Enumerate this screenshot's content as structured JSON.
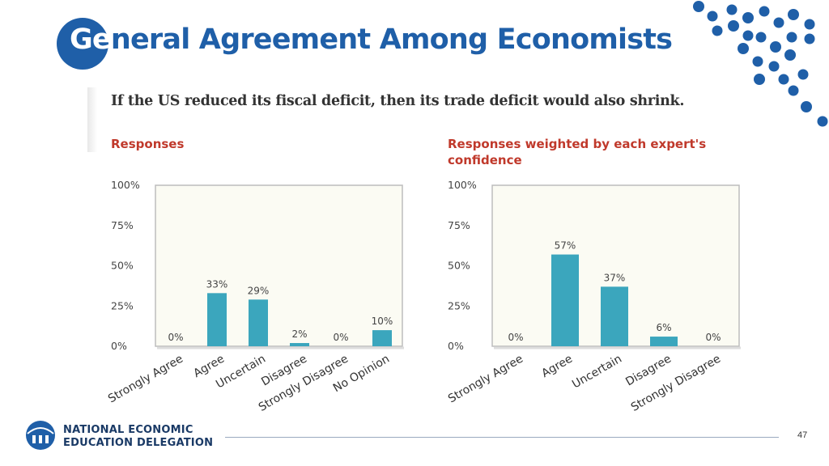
{
  "slide": {
    "title_part1": "Ge",
    "title_part2": "neral Agreement Among Economists",
    "question": "If the US reduced its fiscal deficit, then its trade deficit would also shrink.",
    "page_number": "47"
  },
  "footer": {
    "org_line1": "NATIONAL ECONOMIC",
    "org_line2": "EDUCATION DELEGATION"
  },
  "colors": {
    "bar": "#3ba6bd",
    "title_blue": "#1f5fa8",
    "chart_title_red": "#c0392b",
    "plot_frame": "#bdbdbd",
    "plot_bg": "#fbfbf3"
  },
  "chart_data": [
    {
      "type": "bar",
      "title": "Responses",
      "categories": [
        "Strongly Agree",
        "Agree",
        "Uncertain",
        "Disagree",
        "Strongly Disagree",
        "No Opinion"
      ],
      "values": [
        0,
        33,
        29,
        2,
        0,
        10
      ],
      "value_labels": [
        "0%",
        "33%",
        "29%",
        "2%",
        "0%",
        "10%"
      ],
      "yticks": [
        "0%",
        "25%",
        "50%",
        "75%",
        "100%"
      ],
      "ylim": [
        0,
        100
      ],
      "grid": false
    },
    {
      "type": "bar",
      "title": "Responses weighted by each expert's confidence",
      "categories": [
        "Strongly Agree",
        "Agree",
        "Uncertain",
        "Disagree",
        "Strongly Disagree"
      ],
      "values": [
        0,
        57,
        37,
        6,
        0
      ],
      "value_labels": [
        "0%",
        "57%",
        "37%",
        "6%",
        "0%"
      ],
      "yticks": [
        "0%",
        "25%",
        "50%",
        "75%",
        "100%"
      ],
      "ylim": [
        0,
        100
      ],
      "grid": false
    }
  ]
}
